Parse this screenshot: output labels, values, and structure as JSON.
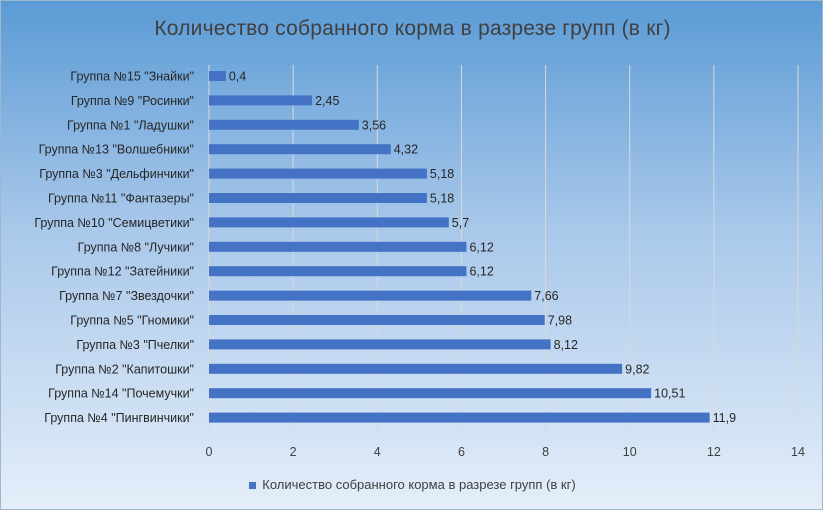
{
  "chart_data": {
    "type": "bar",
    "orientation": "horizontal",
    "title": "Количество собранного корма в разрезе групп (в кг)",
    "categories": [
      "Группа №15 \"Знайки\"",
      "Группа №9 \"Росинки\"",
      "Группа №1 \"Ладушки\"",
      "Группа №13 \"Волшебники\"",
      "Группа №3 \"Дельфинчики\"",
      "Группа №11 \"Фантазеры\"",
      "Группа №10 \"Семицветики\"",
      "Группа №8 \"Лучики\"",
      "Группа №12 \"Затейники\"",
      "Группа №7 \"Звездочки\"",
      "Группа №5 \"Гномики\"",
      "Группа №3 \"Пчелки\"",
      "Группа №2 \"Капитошки\"",
      "Группа №14 \"Почемучки\"",
      "Группа №4 \"Пингвинчики\""
    ],
    "series": [
      {
        "name": "Количество собранного корма в разрезе групп (в кг)",
        "values": [
          0.4,
          2.45,
          3.56,
          4.32,
          5.18,
          5.18,
          5.7,
          6.12,
          6.12,
          7.66,
          7.98,
          8.12,
          9.82,
          10.51,
          11.9
        ],
        "labels": [
          "0,4",
          "2,45",
          "3,56",
          "4,32",
          "5,18",
          "5,18",
          "5,7",
          "6,12",
          "6,12",
          "7,66",
          "7,98",
          "8,12",
          "9,82",
          "10,51",
          "11,9"
        ]
      }
    ],
    "xlim": [
      0,
      14
    ],
    "xticks": [
      "0",
      "2",
      "4",
      "6",
      "8",
      "10",
      "12",
      "14"
    ],
    "grid": true,
    "legend_position": "bottom",
    "bar_color": "#4472c4",
    "grid_color": "#d9d9d9"
  }
}
